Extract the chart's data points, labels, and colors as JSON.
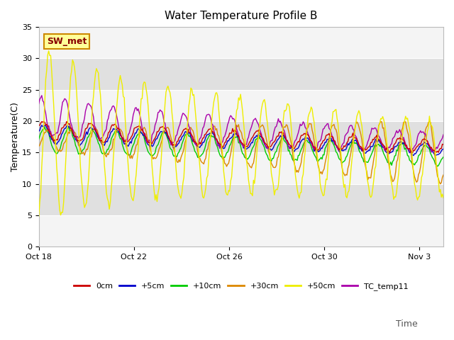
{
  "title": "Water Temperature Profile B",
  "ylabel": "Temperature(C)",
  "ylim": [
    0,
    35
  ],
  "yticks": [
    0,
    5,
    10,
    15,
    20,
    25,
    30,
    35
  ],
  "xtick_labels": [
    "Oct 18",
    "Oct 22",
    "Oct 26",
    "Oct 30",
    "Nov 3"
  ],
  "series_colors": {
    "0cm": "#cc0000",
    "+5cm": "#0000cc",
    "+10cm": "#00cc00",
    "+30cm": "#dd8800",
    "+50cm": "#eeee00",
    "TC_temp11": "#aa00aa"
  },
  "legend_label_SW_met": "SW_met",
  "plot_bg_color": "#e0e0e0",
  "white_band_color": "#f4f4f4",
  "annotation_box_bg": "#ffff99",
  "annotation_box_edge": "#cc8800"
}
